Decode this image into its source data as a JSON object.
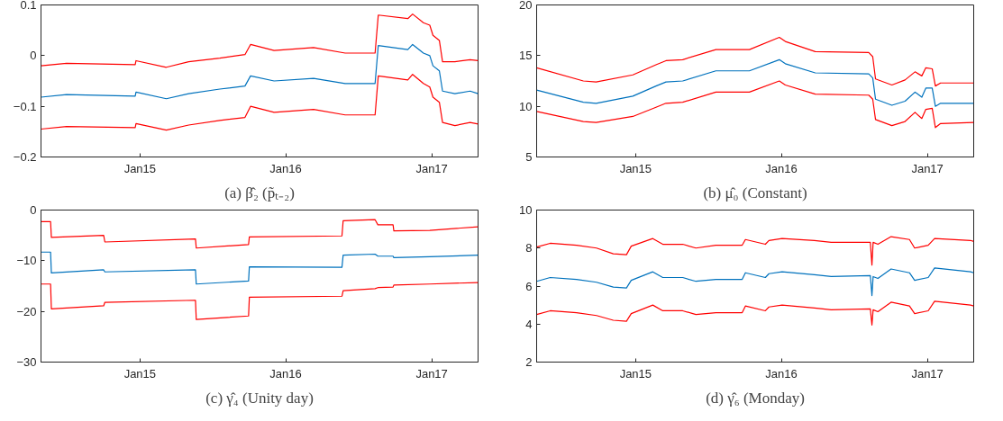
{
  "chart_data": [
    {
      "type": "line",
      "title": "(a) β̂₂ (p̃ₜ₋₂)",
      "xlim": [
        "2014-04-28",
        "2017-04-27"
      ],
      "ylim": [
        -0.2,
        0.1
      ],
      "yticks": [
        -0.2,
        -0.1,
        0,
        0.1
      ],
      "xticks": [
        {
          "value": "2015-01-01",
          "label": "Jan15"
        },
        {
          "value": "2016-01-01",
          "label": "Jan16"
        },
        {
          "value": "2017-01-01",
          "label": "Jan17"
        }
      ],
      "x": [
        "2014-04-28",
        "2014-07-01",
        "2014-12-20",
        "2014-12-22",
        "2015-03-08",
        "2015-05-03",
        "2015-07-20",
        "2015-09-21",
        "2015-10-05",
        "2015-12-03",
        "2016-03-11",
        "2016-05-29",
        "2016-08-12",
        "2016-08-20",
        "2016-11-02",
        "2016-11-14",
        "2016-12-11",
        "2016-12-27",
        "2017-01-04",
        "2017-01-20",
        "2017-01-28",
        "2017-02-28",
        "2017-04-07",
        "2017-04-27"
      ],
      "series": [
        {
          "color": "#ff0000",
          "values": [
            -0.02,
            -0.015,
            -0.018,
            -0.01,
            -0.023,
            -0.012,
            -0.005,
            0.002,
            0.022,
            0.01,
            0.016,
            0.005,
            0.005,
            0.08,
            0.073,
            0.082,
            0.065,
            0.06,
            0.04,
            0.03,
            -0.012,
            -0.012,
            -0.008,
            -0.01
          ]
        },
        {
          "color": "#0072bd",
          "values": [
            -0.082,
            -0.077,
            -0.08,
            -0.072,
            -0.085,
            -0.075,
            -0.066,
            -0.06,
            -0.04,
            -0.05,
            -0.045,
            -0.055,
            -0.055,
            0.02,
            0.012,
            0.022,
            0.005,
            0.0,
            -0.02,
            -0.03,
            -0.07,
            -0.075,
            -0.07,
            -0.075
          ]
        },
        {
          "color": "#ff0000",
          "values": [
            -0.145,
            -0.14,
            -0.142,
            -0.134,
            -0.147,
            -0.137,
            -0.128,
            -0.122,
            -0.1,
            -0.112,
            -0.106,
            -0.117,
            -0.117,
            -0.04,
            -0.048,
            -0.037,
            -0.055,
            -0.062,
            -0.082,
            -0.092,
            -0.132,
            -0.138,
            -0.132,
            -0.135
          ]
        }
      ]
    },
    {
      "type": "line",
      "title": "(b) μ̂₀ (Constant)",
      "xlim": [
        "2014-04-28",
        "2017-04-27"
      ],
      "ylim": [
        5,
        20
      ],
      "yticks": [
        5,
        10,
        15,
        20
      ],
      "xticks": [
        {
          "value": "2015-01-01",
          "label": "Jan15"
        },
        {
          "value": "2016-01-01",
          "label": "Jan16"
        },
        {
          "value": "2017-01-01",
          "label": "Jan17"
        }
      ],
      "x": [
        "2014-04-28",
        "2014-08-23",
        "2014-09-24",
        "2014-12-25",
        "2015-02-21",
        "2015-03-18",
        "2015-04-29",
        "2015-07-21",
        "2015-10-13",
        "2015-12-27",
        "2016-01-11",
        "2016-03-26",
        "2016-08-07",
        "2016-08-17",
        "2016-08-24",
        "2016-10-04",
        "2016-11-06",
        "2016-12-01",
        "2016-12-18",
        "2016-12-28",
        "2017-01-13",
        "2017-01-21",
        "2017-02-03",
        "2017-04-27"
      ],
      "series": [
        {
          "color": "#ff0000",
          "values": [
            13.8,
            12.5,
            12.4,
            13.1,
            14.1,
            14.5,
            14.6,
            15.6,
            15.6,
            16.8,
            16.4,
            15.4,
            15.3,
            14.9,
            12.7,
            12.1,
            12.6,
            13.4,
            13.0,
            13.8,
            13.7,
            12.0,
            12.3,
            12.3
          ]
        },
        {
          "color": "#0072bd",
          "values": [
            11.6,
            10.4,
            10.3,
            11.0,
            12.0,
            12.4,
            12.5,
            13.5,
            13.5,
            14.6,
            14.2,
            13.3,
            13.2,
            12.8,
            10.7,
            10.1,
            10.5,
            11.4,
            10.9,
            11.8,
            11.8,
            10.0,
            10.3,
            10.3
          ]
        },
        {
          "color": "#ff0000",
          "values": [
            9.5,
            8.5,
            8.4,
            9.0,
            9.9,
            10.3,
            10.4,
            11.4,
            11.4,
            12.5,
            12.1,
            11.2,
            11.1,
            10.7,
            8.7,
            8.1,
            8.5,
            9.4,
            8.8,
            9.7,
            9.8,
            7.9,
            8.3,
            8.4
          ]
        }
      ]
    },
    {
      "type": "line",
      "title": "(c) γ̂₄ (Unity day)",
      "xlim": [
        "2014-04-28",
        "2017-04-27"
      ],
      "ylim": [
        -30,
        0
      ],
      "yticks": [
        -30,
        -20,
        -10,
        0
      ],
      "xticks": [
        {
          "value": "2015-01-01",
          "label": "Jan15"
        },
        {
          "value": "2016-01-01",
          "label": "Jan16"
        },
        {
          "value": "2017-01-01",
          "label": "Jan17"
        }
      ],
      "x": [
        "2014-04-28",
        "2014-05-22",
        "2014-05-24",
        "2014-10-02",
        "2014-10-05",
        "2015-05-20",
        "2015-05-22",
        "2015-09-30",
        "2015-10-02",
        "2016-05-21",
        "2016-05-24",
        "2016-08-12",
        "2016-08-19",
        "2016-09-26",
        "2016-09-28",
        "2016-12-27",
        "2017-04-27"
      ],
      "series": [
        {
          "color": "#ff0000",
          "values": [
            -2.3,
            -2.3,
            -5.4,
            -5.0,
            -6.3,
            -5.7,
            -7.5,
            -6.8,
            -5.3,
            -5.1,
            -2.1,
            -1.9,
            -2.9,
            -2.9,
            -4.1,
            -4.0,
            -3.3
          ]
        },
        {
          "color": "#0072bd",
          "values": [
            -8.3,
            -8.3,
            -12.4,
            -11.8,
            -12.2,
            -11.8,
            -14.6,
            -14.0,
            -11.2,
            -11.3,
            -8.9,
            -8.7,
            -9.1,
            -9.1,
            -9.4,
            -9.2,
            -8.9
          ]
        },
        {
          "color": "#ff0000",
          "values": [
            -14.6,
            -14.6,
            -19.5,
            -18.9,
            -18.2,
            -17.8,
            -21.6,
            -20.9,
            -17.2,
            -17.0,
            -15.9,
            -15.5,
            -15.3,
            -15.2,
            -14.8,
            -14.6,
            -14.3
          ]
        }
      ]
    },
    {
      "type": "line",
      "title": "(d) γ̂₆ (Monday)",
      "xlim": [
        "2014-04-28",
        "2017-04-27"
      ],
      "ylim": [
        2,
        10
      ],
      "yticks": [
        2,
        4,
        6,
        8,
        10
      ],
      "xticks": [
        {
          "value": "2015-01-01",
          "label": "Jan15"
        },
        {
          "value": "2016-01-01",
          "label": "Jan16"
        },
        {
          "value": "2017-01-01",
          "label": "Jan17"
        }
      ],
      "x": [
        "2014-04-28",
        "2014-06-01",
        "2014-08-06",
        "2014-09-25",
        "2014-11-06",
        "2014-12-09",
        "2014-12-21",
        "2015-02-13",
        "2015-03-10",
        "2015-04-29",
        "2015-06-01",
        "2015-07-21",
        "2015-09-25",
        "2015-10-03",
        "2015-11-22",
        "2015-12-01",
        "2016-01-03",
        "2016-03-24",
        "2016-05-05",
        "2016-08-11",
        "2016-08-15",
        "2016-08-18",
        "2016-08-30",
        "2016-10-02",
        "2016-11-17",
        "2016-11-30",
        "2017-01-03",
        "2017-01-19",
        "2017-04-19",
        "2017-04-27"
      ],
      "series": [
        {
          "color": "#ff0000",
          "values": [
            8.05,
            8.25,
            8.15,
            8.0,
            7.7,
            7.65,
            8.1,
            8.5,
            8.2,
            8.2,
            8.0,
            8.15,
            8.15,
            8.45,
            8.2,
            8.4,
            8.5,
            8.4,
            8.3,
            8.3,
            7.1,
            8.3,
            8.2,
            8.6,
            8.45,
            8.0,
            8.15,
            8.5,
            8.4,
            8.35
          ]
        },
        {
          "color": "#0072bd",
          "values": [
            6.25,
            6.45,
            6.35,
            6.2,
            5.95,
            5.9,
            6.3,
            6.75,
            6.45,
            6.45,
            6.25,
            6.35,
            6.35,
            6.7,
            6.45,
            6.65,
            6.75,
            6.6,
            6.5,
            6.55,
            5.5,
            6.5,
            6.4,
            6.9,
            6.7,
            6.3,
            6.45,
            6.95,
            6.75,
            6.7
          ]
        },
        {
          "color": "#ff0000",
          "values": [
            4.5,
            4.7,
            4.6,
            4.45,
            4.2,
            4.15,
            4.55,
            5.0,
            4.7,
            4.7,
            4.5,
            4.6,
            4.6,
            4.95,
            4.7,
            4.9,
            5.0,
            4.85,
            4.75,
            4.8,
            3.95,
            4.75,
            4.65,
            5.15,
            4.95,
            4.55,
            4.7,
            5.2,
            5.0,
            4.95
          ]
        }
      ]
    }
  ]
}
